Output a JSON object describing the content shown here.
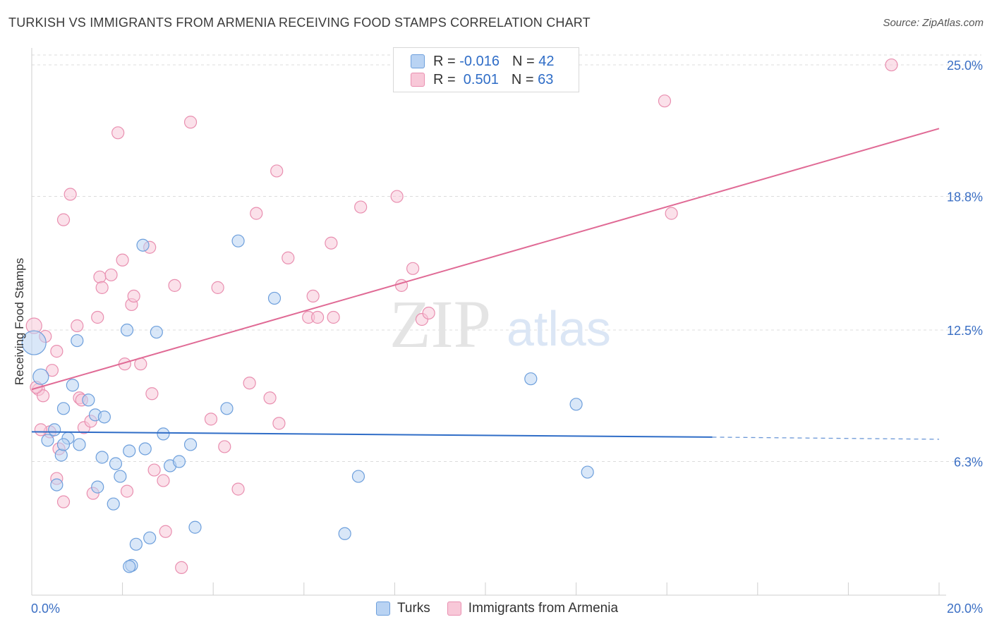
{
  "title": "TURKISH VS IMMIGRANTS FROM ARMENIA RECEIVING FOOD STAMPS CORRELATION CHART",
  "source": "Source: ZipAtlas.com",
  "watermark": {
    "zip": "ZIP",
    "atlas": "atlas"
  },
  "legend": {
    "rows": [
      {
        "r_label": "R =",
        "r_value": "-0.016",
        "n_label": "N =",
        "n_value": "42"
      },
      {
        "r_label": "R =",
        "r_value": " 0.501",
        "n_label": "N =",
        "n_value": "63"
      }
    ]
  },
  "colors": {
    "turks_fill": "#b9d3f3",
    "turks_stroke": "#6d9fdc",
    "turks_line": "#2f6dc7",
    "armenia_fill": "#f8c8d8",
    "armenia_stroke": "#e98fb0",
    "armenia_line": "#e06a95",
    "grid": "#dcdcdc",
    "tick_label": "#3b6fc4"
  },
  "chart_data": {
    "type": "scatter",
    "title": "TURKISH VS IMMIGRANTS FROM ARMENIA RECEIVING FOOD STAMPS CORRELATION CHART",
    "xlabel": "",
    "ylabel": "Receiving Food Stamps",
    "xlim": [
      0,
      20
    ],
    "ylim": [
      0,
      25.8
    ],
    "x_tick_labels": [
      "0.0%",
      "20.0%"
    ],
    "y_ticks": [
      6.3,
      12.5,
      18.8,
      25.0
    ],
    "y_tick_labels": [
      "6.3%",
      "12.5%",
      "18.8%",
      "25.0%"
    ],
    "grid": true,
    "legend_position": "top-center",
    "series": [
      {
        "name": "Turks",
        "r": -0.016,
        "n": 42,
        "trend": {
          "x0": 0.0,
          "y0": 7.7,
          "x1": 15.0,
          "y1": 7.45,
          "dash_to_x": 20.0,
          "dash_to_y": 7.35
        },
        "points": [
          [
            0.05,
            11.9,
            "big"
          ],
          [
            0.2,
            10.3,
            "mid"
          ],
          [
            0.35,
            7.3
          ],
          [
            0.5,
            7.8
          ],
          [
            0.65,
            6.6
          ],
          [
            0.8,
            7.4
          ],
          [
            0.7,
            7.1
          ],
          [
            0.55,
            5.2
          ],
          [
            0.9,
            9.9
          ],
          [
            1.05,
            7.1
          ],
          [
            1.25,
            9.2
          ],
          [
            1.4,
            8.5
          ],
          [
            1.6,
            8.4
          ],
          [
            1.55,
            6.5
          ],
          [
            1.45,
            5.1
          ],
          [
            1.85,
            6.2
          ],
          [
            1.95,
            5.6
          ],
          [
            1.8,
            4.3
          ],
          [
            2.15,
            6.8
          ],
          [
            2.5,
            6.9
          ],
          [
            2.6,
            2.7
          ],
          [
            2.3,
            2.4
          ],
          [
            2.2,
            1.4
          ],
          [
            2.45,
            16.5
          ],
          [
            2.1,
            12.5
          ],
          [
            1.0,
            12.0
          ],
          [
            2.9,
            7.6
          ],
          [
            2.75,
            12.4
          ],
          [
            2.15,
            1.35
          ],
          [
            3.05,
            6.1
          ],
          [
            3.25,
            6.3
          ],
          [
            3.5,
            7.1
          ],
          [
            3.6,
            3.2
          ],
          [
            4.3,
            8.8
          ],
          [
            4.55,
            16.7
          ],
          [
            5.35,
            14.0
          ],
          [
            6.9,
            2.9
          ],
          [
            7.2,
            5.6
          ],
          [
            11.0,
            10.2
          ],
          [
            12.0,
            9.0
          ],
          [
            12.25,
            5.8
          ],
          [
            0.7,
            8.8
          ]
        ]
      },
      {
        "name": "Immigrants from Armenia",
        "r": 0.501,
        "n": 63,
        "trend": {
          "x0": 0.0,
          "y0": 9.7,
          "x1": 20.0,
          "y1": 22.0
        },
        "points": [
          [
            0.05,
            12.7,
            "mid"
          ],
          [
            0.3,
            12.2
          ],
          [
            0.15,
            9.7
          ],
          [
            0.25,
            9.4
          ],
          [
            0.45,
            10.6
          ],
          [
            0.55,
            11.5
          ],
          [
            0.4,
            7.7
          ],
          [
            0.2,
            7.8
          ],
          [
            0.6,
            6.9
          ],
          [
            0.7,
            4.4
          ],
          [
            0.55,
            5.5
          ],
          [
            0.85,
            18.9
          ],
          [
            0.7,
            17.7
          ],
          [
            1.0,
            12.7
          ],
          [
            1.05,
            9.3
          ],
          [
            1.1,
            9.2
          ],
          [
            1.15,
            7.9
          ],
          [
            1.3,
            8.2
          ],
          [
            1.35,
            4.8
          ],
          [
            1.45,
            13.1
          ],
          [
            1.5,
            15.0
          ],
          [
            1.55,
            14.5
          ],
          [
            1.75,
            15.1
          ],
          [
            1.9,
            21.8
          ],
          [
            2.0,
            15.8
          ],
          [
            2.05,
            10.9
          ],
          [
            2.1,
            4.9
          ],
          [
            2.2,
            13.7
          ],
          [
            2.25,
            14.1
          ],
          [
            2.4,
            10.9
          ],
          [
            2.6,
            16.4
          ],
          [
            2.65,
            9.5
          ],
          [
            2.7,
            5.9
          ],
          [
            2.9,
            5.4
          ],
          [
            2.95,
            3.0
          ],
          [
            3.15,
            14.6
          ],
          [
            3.3,
            1.3
          ],
          [
            3.5,
            22.3
          ],
          [
            3.95,
            8.3
          ],
          [
            4.1,
            14.5
          ],
          [
            4.25,
            7.0
          ],
          [
            4.55,
            5.0
          ],
          [
            4.8,
            10.0
          ],
          [
            4.95,
            18.0
          ],
          [
            5.25,
            9.3
          ],
          [
            5.4,
            20.0
          ],
          [
            5.45,
            8.1
          ],
          [
            5.65,
            15.9
          ],
          [
            6.2,
            14.1
          ],
          [
            6.1,
            13.1
          ],
          [
            6.3,
            13.1
          ],
          [
            6.6,
            16.6
          ],
          [
            6.65,
            13.1
          ],
          [
            7.25,
            18.3
          ],
          [
            8.05,
            18.8
          ],
          [
            8.15,
            14.6
          ],
          [
            8.4,
            15.4
          ],
          [
            8.6,
            13.0
          ],
          [
            8.75,
            13.3
          ],
          [
            13.95,
            23.3
          ],
          [
            14.1,
            18.0
          ],
          [
            18.95,
            25.0
          ],
          [
            0.1,
            9.8
          ]
        ]
      }
    ]
  },
  "bottom_legend": {
    "items": [
      "Turks",
      "Immigrants from Armenia"
    ]
  }
}
